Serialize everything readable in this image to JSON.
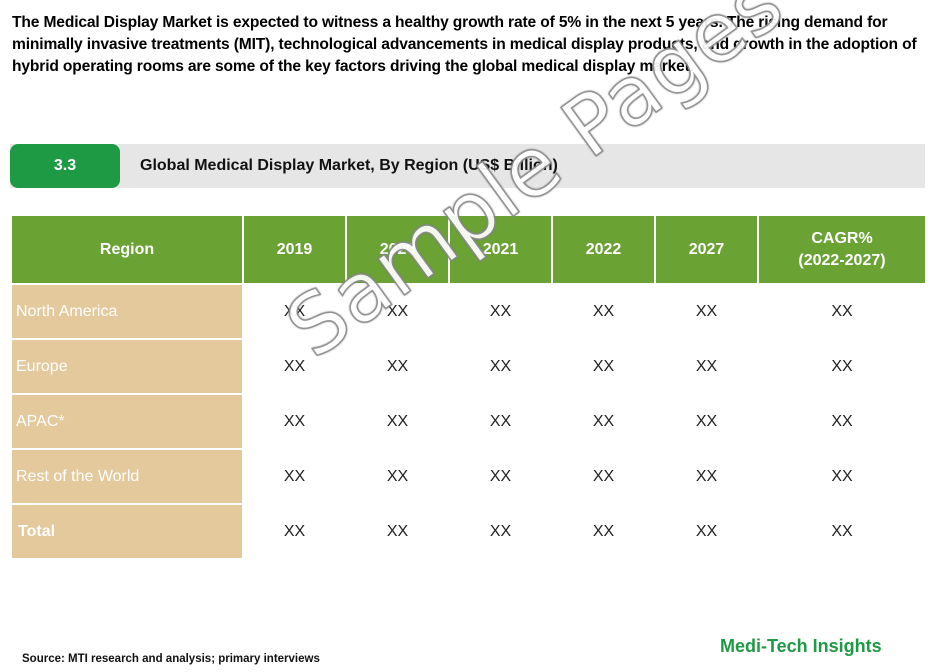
{
  "intro": "The Medical Display Market is expected to witness a healthy growth rate of 5% in the next 5 years. The rising demand for minimally invasive treatments (MIT), technological advancements in medical display products, and growth in the adoption of hybrid operating rooms are some of the key factors driving the global medical display market.",
  "section": {
    "number": "3.3",
    "title": "Global Medical Display Market, By Region (US$ Billion)"
  },
  "table": {
    "headers": [
      "Region",
      "2019",
      "2020",
      "2021",
      "2022",
      "2027",
      "CAGR%",
      "(2022-2027)"
    ],
    "rows": [
      {
        "region": "North America",
        "values": [
          "XX",
          "XX",
          "XX",
          "XX",
          "XX",
          "XX"
        ]
      },
      {
        "region": "Europe",
        "values": [
          "XX",
          "XX",
          "XX",
          "XX",
          "XX",
          "XX"
        ]
      },
      {
        "region": "APAC*",
        "values": [
          "XX",
          "XX",
          "XX",
          "XX",
          "XX",
          "XX"
        ]
      },
      {
        "region": "Rest of the World",
        "values": [
          "XX",
          "XX",
          "XX",
          "XX",
          "XX",
          "XX"
        ]
      },
      {
        "region": "Total",
        "values": [
          "XX",
          "XX",
          "XX",
          "XX",
          "XX",
          "XX"
        ]
      }
    ]
  },
  "watermark": "Sample Pages",
  "brand": "Medi-Tech Insights",
  "source": "Source: MTI research and analysis; primary interviews",
  "colors": {
    "green_accent": "#1e9a45",
    "header_green": "#6aa334",
    "region_tan": "#e3c99c",
    "bar_gray": "#e6e6e6"
  }
}
